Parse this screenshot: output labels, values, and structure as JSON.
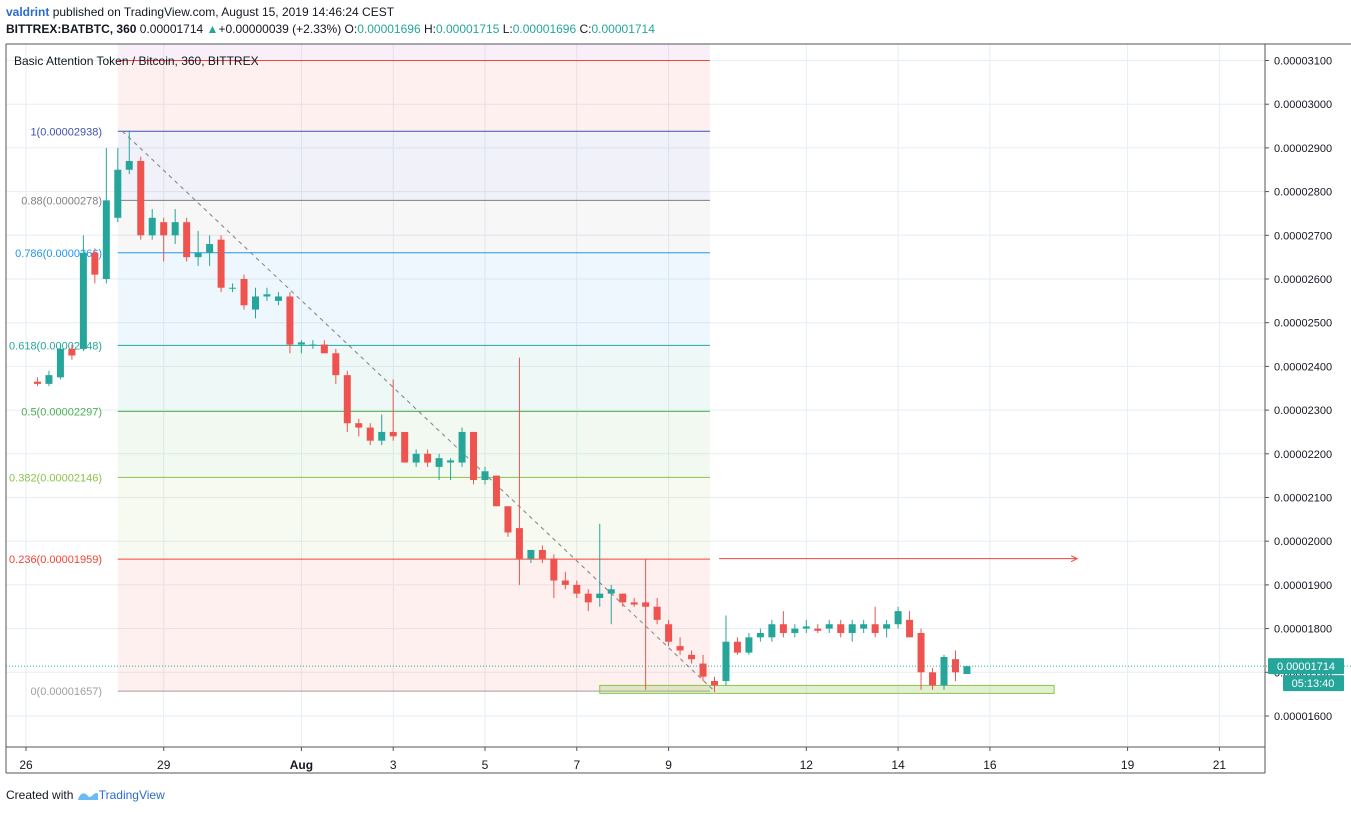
{
  "header": {
    "user": "valdrint",
    "published": "published on TradingView.com, August 15, 2019 14:46:24 CEST",
    "symbol": "BITTREX:BATBTC, 360",
    "last": "0.00001714",
    "change": "+0.00000039 (+2.33%)",
    "o_label": "O:",
    "o": "0.00001696",
    "h_label": "H:",
    "h": "0.00001715",
    "l_label": "L:",
    "l": "0.00001696",
    "c_label": "C:",
    "c": "0.00001714"
  },
  "legend": "Basic Attention Token / Bitcoin, 360, BITTREX",
  "footer": {
    "created_with": "Created with",
    "brand": "TradingView"
  },
  "colors": {
    "up": "#26a69a",
    "down": "#ef5350",
    "grid": "#e6eef5",
    "fib_1": "#3f51b5",
    "fib_088": "#808080",
    "fib_0786": "#2196f3",
    "fib_0618": "#26a69a",
    "fib_05": "#4caf50",
    "fib_0382": "#8bc34a",
    "fib_0236": "#f44336",
    "fib_0": "#9e9e9e",
    "fib_top": "#f44336",
    "price_tag": "#26a69a",
    "support_box": "#8bc34a"
  },
  "chart_data": {
    "type": "candlestick",
    "title": "Basic Attention Token / Bitcoin, 360, BITTREX",
    "ylim": [
      1.55e-05,
      3.14e-05
    ],
    "y_ticks": [
      "0.00003100",
      "0.00003000",
      "0.00002900",
      "0.00002800",
      "0.00002700",
      "0.00002600",
      "0.00002500",
      "0.00002400",
      "0.00002300",
      "0.00002200",
      "0.00002100",
      "0.00002000",
      "0.00001900",
      "0.00001800",
      "0.00001700",
      "0.00001600"
    ],
    "x_ticks": [
      {
        "label": "26",
        "day": 26
      },
      {
        "label": "29",
        "day": 29
      },
      {
        "label": "Aug",
        "day": 32
      },
      {
        "label": "3",
        "day": 34
      },
      {
        "label": "5",
        "day": 36
      },
      {
        "label": "7",
        "day": 38
      },
      {
        "label": "9",
        "day": 40
      },
      {
        "label": "12",
        "day": 43
      },
      {
        "label": "14",
        "day": 45
      },
      {
        "label": "16",
        "day": 47
      },
      {
        "label": "19",
        "day": 50
      },
      {
        "label": "21",
        "day": 52
      }
    ],
    "fib_levels": [
      {
        "ratio": "1.272",
        "price": 3.1e-05,
        "label": ""
      },
      {
        "ratio": "1",
        "price": 2.938e-05,
        "label": "1(0.00002938)"
      },
      {
        "ratio": "0.88",
        "price": 2.78e-05,
        "label": "0.88(0.0000278)"
      },
      {
        "ratio": "0.786",
        "price": 2.66e-05,
        "label": "0.786(0.0000266)"
      },
      {
        "ratio": "0.618",
        "price": 2.448e-05,
        "label": "0.618(0.00002448)"
      },
      {
        "ratio": "0.5",
        "price": 2.297e-05,
        "label": "0.5(0.00002297)"
      },
      {
        "ratio": "0.382",
        "price": 2.146e-05,
        "label": "0.382(0.00002146)"
      },
      {
        "ratio": "0.236",
        "price": 1.959e-05,
        "label": "0.236(0.00001959)"
      },
      {
        "ratio": "0",
        "price": 1.657e-05,
        "label": "0(0.00001657)"
      }
    ],
    "fib_range_days": [
      28.0,
      40.9
    ],
    "current_price": "0.00001714",
    "countdown": "05:13:40",
    "resistance_arrow": {
      "price": 1.96e-05,
      "from_day": 41.1,
      "to_day": 48.9
    },
    "support_box": {
      "low": 1.65e-05,
      "high": 1.67e-05,
      "from_day": 38.5,
      "to_day": 48.4
    },
    "candles": [
      {
        "d": 26.25,
        "o": 2.365,
        "h": 2.375,
        "l": 2.355,
        "c": 2.36
      },
      {
        "d": 26.5,
        "o": 2.36,
        "h": 2.39,
        "l": 2.355,
        "c": 2.38
      },
      {
        "d": 26.75,
        "o": 2.375,
        "h": 2.45,
        "l": 2.37,
        "c": 2.44
      },
      {
        "d": 27.0,
        "o": 2.44,
        "h": 2.45,
        "l": 2.415,
        "c": 2.425
      },
      {
        "d": 27.25,
        "o": 2.44,
        "h": 2.7,
        "l": 2.435,
        "c": 2.66
      },
      {
        "d": 27.5,
        "o": 2.66,
        "h": 2.67,
        "l": 2.59,
        "c": 2.61
      },
      {
        "d": 27.75,
        "o": 2.6,
        "h": 2.9,
        "l": 2.59,
        "c": 2.78
      },
      {
        "d": 28.0,
        "o": 2.74,
        "h": 2.9,
        "l": 2.73,
        "c": 2.85
      },
      {
        "d": 28.25,
        "o": 2.85,
        "h": 2.94,
        "l": 2.84,
        "c": 2.87
      },
      {
        "d": 28.5,
        "o": 2.87,
        "h": 2.88,
        "l": 2.69,
        "c": 2.7
      },
      {
        "d": 28.75,
        "o": 2.7,
        "h": 2.76,
        "l": 2.69,
        "c": 2.74
      },
      {
        "d": 29.0,
        "o": 2.73,
        "h": 2.74,
        "l": 2.64,
        "c": 2.7
      },
      {
        "d": 29.25,
        "o": 2.7,
        "h": 2.76,
        "l": 2.68,
        "c": 2.73
      },
      {
        "d": 29.5,
        "o": 2.73,
        "h": 2.74,
        "l": 2.64,
        "c": 2.65
      },
      {
        "d": 29.75,
        "o": 2.65,
        "h": 2.71,
        "l": 2.63,
        "c": 2.66
      },
      {
        "d": 30.0,
        "o": 2.66,
        "h": 2.7,
        "l": 2.63,
        "c": 2.68
      },
      {
        "d": 30.25,
        "o": 2.69,
        "h": 2.7,
        "l": 2.57,
        "c": 2.58
      },
      {
        "d": 30.5,
        "o": 2.58,
        "h": 2.59,
        "l": 2.57,
        "c": 2.58
      },
      {
        "d": 30.75,
        "o": 2.6,
        "h": 2.61,
        "l": 2.53,
        "c": 2.54
      },
      {
        "d": 31.0,
        "o": 2.53,
        "h": 2.58,
        "l": 2.51,
        "c": 2.56
      },
      {
        "d": 31.25,
        "o": 2.56,
        "h": 2.58,
        "l": 2.55,
        "c": 2.565
      },
      {
        "d": 31.5,
        "o": 2.55,
        "h": 2.57,
        "l": 2.54,
        "c": 2.56
      },
      {
        "d": 31.75,
        "o": 2.56,
        "h": 2.57,
        "l": 2.43,
        "c": 2.45
      },
      {
        "d": 32.0,
        "o": 2.45,
        "h": 2.46,
        "l": 2.43,
        "c": 2.455
      },
      {
        "d": 32.25,
        "o": 2.45,
        "h": 2.46,
        "l": 2.44,
        "c": 2.45
      },
      {
        "d": 32.5,
        "o": 2.45,
        "h": 2.46,
        "l": 2.43,
        "c": 2.43
      },
      {
        "d": 32.75,
        "o": 2.43,
        "h": 2.44,
        "l": 2.36,
        "c": 2.38
      },
      {
        "d": 33.0,
        "o": 2.38,
        "h": 2.39,
        "l": 2.25,
        "c": 2.27
      },
      {
        "d": 33.25,
        "o": 2.27,
        "h": 2.28,
        "l": 2.24,
        "c": 2.26
      },
      {
        "d": 33.5,
        "o": 2.26,
        "h": 2.27,
        "l": 2.22,
        "c": 2.23
      },
      {
        "d": 33.75,
        "o": 2.23,
        "h": 2.29,
        "l": 2.22,
        "c": 2.25
      },
      {
        "d": 34.0,
        "o": 2.25,
        "h": 2.37,
        "l": 2.23,
        "c": 2.24
      },
      {
        "d": 34.25,
        "o": 2.25,
        "h": 2.25,
        "l": 2.18,
        "c": 2.18
      },
      {
        "d": 34.5,
        "o": 2.18,
        "h": 2.21,
        "l": 2.17,
        "c": 2.2
      },
      {
        "d": 34.75,
        "o": 2.2,
        "h": 2.21,
        "l": 2.17,
        "c": 2.18
      },
      {
        "d": 35.0,
        "o": 2.17,
        "h": 2.2,
        "l": 2.14,
        "c": 2.19
      },
      {
        "d": 35.25,
        "o": 2.18,
        "h": 2.19,
        "l": 2.14,
        "c": 2.185
      },
      {
        "d": 35.5,
        "o": 2.18,
        "h": 2.26,
        "l": 2.17,
        "c": 2.25
      },
      {
        "d": 35.75,
        "o": 2.25,
        "h": 2.25,
        "l": 2.13,
        "c": 2.14
      },
      {
        "d": 36.0,
        "o": 2.14,
        "h": 2.17,
        "l": 2.13,
        "c": 2.16
      },
      {
        "d": 36.25,
        "o": 2.15,
        "h": 2.15,
        "l": 2.08,
        "c": 2.08
      },
      {
        "d": 36.5,
        "o": 2.08,
        "h": 2.08,
        "l": 2.01,
        "c": 2.02
      },
      {
        "d": 36.75,
        "o": 2.03,
        "h": 2.42,
        "l": 1.9,
        "c": 1.96
      },
      {
        "d": 37.0,
        "o": 1.96,
        "h": 1.98,
        "l": 1.95,
        "c": 1.98
      },
      {
        "d": 37.25,
        "o": 1.98,
        "h": 1.99,
        "l": 1.95,
        "c": 1.96
      },
      {
        "d": 37.5,
        "o": 1.96,
        "h": 1.97,
        "l": 1.87,
        "c": 1.91
      },
      {
        "d": 37.75,
        "o": 1.91,
        "h": 1.93,
        "l": 1.89,
        "c": 1.9
      },
      {
        "d": 38.0,
        "o": 1.9,
        "h": 1.91,
        "l": 1.87,
        "c": 1.88
      },
      {
        "d": 38.25,
        "o": 1.88,
        "h": 1.89,
        "l": 1.84,
        "c": 1.86
      },
      {
        "d": 38.5,
        "o": 1.87,
        "h": 2.04,
        "l": 1.85,
        "c": 1.88
      },
      {
        "d": 38.75,
        "o": 1.88,
        "h": 1.9,
        "l": 1.81,
        "c": 1.89
      },
      {
        "d": 39.0,
        "o": 1.88,
        "h": 1.88,
        "l": 1.85,
        "c": 1.86
      },
      {
        "d": 39.25,
        "o": 1.86,
        "h": 1.87,
        "l": 1.85,
        "c": 1.855
      },
      {
        "d": 39.5,
        "o": 1.86,
        "h": 1.96,
        "l": 1.66,
        "c": 1.85
      },
      {
        "d": 39.75,
        "o": 1.85,
        "h": 1.87,
        "l": 1.81,
        "c": 1.82
      },
      {
        "d": 40.0,
        "o": 1.81,
        "h": 1.82,
        "l": 1.76,
        "c": 1.77
      },
      {
        "d": 40.25,
        "o": 1.76,
        "h": 1.78,
        "l": 1.74,
        "c": 1.75
      },
      {
        "d": 40.5,
        "o": 1.74,
        "h": 1.75,
        "l": 1.72,
        "c": 1.73
      },
      {
        "d": 40.75,
        "o": 1.72,
        "h": 1.74,
        "l": 1.68,
        "c": 1.69
      },
      {
        "d": 41.0,
        "o": 1.68,
        "h": 1.69,
        "l": 1.655,
        "c": 1.67
      },
      {
        "d": 41.25,
        "o": 1.68,
        "h": 1.83,
        "l": 1.67,
        "c": 1.77
      },
      {
        "d": 41.5,
        "o": 1.77,
        "h": 1.78,
        "l": 1.74,
        "c": 1.745
      },
      {
        "d": 41.75,
        "o": 1.745,
        "h": 1.79,
        "l": 1.74,
        "c": 1.78
      },
      {
        "d": 42.0,
        "o": 1.78,
        "h": 1.8,
        "l": 1.77,
        "c": 1.79
      },
      {
        "d": 42.25,
        "o": 1.78,
        "h": 1.82,
        "l": 1.77,
        "c": 1.81
      },
      {
        "d": 42.5,
        "o": 1.81,
        "h": 1.84,
        "l": 1.78,
        "c": 1.79
      },
      {
        "d": 42.75,
        "o": 1.79,
        "h": 1.81,
        "l": 1.78,
        "c": 1.8
      },
      {
        "d": 43.0,
        "o": 1.8,
        "h": 1.82,
        "l": 1.79,
        "c": 1.805
      },
      {
        "d": 43.25,
        "o": 1.8,
        "h": 1.81,
        "l": 1.79,
        "c": 1.795
      },
      {
        "d": 43.5,
        "o": 1.8,
        "h": 1.82,
        "l": 1.79,
        "c": 1.81
      },
      {
        "d": 43.75,
        "o": 1.81,
        "h": 1.82,
        "l": 1.78,
        "c": 1.79
      },
      {
        "d": 44.0,
        "o": 1.79,
        "h": 1.82,
        "l": 1.77,
        "c": 1.81
      },
      {
        "d": 44.25,
        "o": 1.8,
        "h": 1.82,
        "l": 1.79,
        "c": 1.81
      },
      {
        "d": 44.5,
        "o": 1.81,
        "h": 1.85,
        "l": 1.78,
        "c": 1.79
      },
      {
        "d": 44.75,
        "o": 1.8,
        "h": 1.82,
        "l": 1.78,
        "c": 1.81
      },
      {
        "d": 45.0,
        "o": 1.81,
        "h": 1.85,
        "l": 1.8,
        "c": 1.84
      },
      {
        "d": 45.25,
        "o": 1.82,
        "h": 1.84,
        "l": 1.78,
        "c": 1.78
      },
      {
        "d": 45.5,
        "o": 1.79,
        "h": 1.8,
        "l": 1.66,
        "c": 1.7
      },
      {
        "d": 45.75,
        "o": 1.7,
        "h": 1.71,
        "l": 1.66,
        "c": 1.67
      },
      {
        "d": 46.0,
        "o": 1.67,
        "h": 1.74,
        "l": 1.66,
        "c": 1.735
      },
      {
        "d": 46.25,
        "o": 1.73,
        "h": 1.75,
        "l": 1.68,
        "c": 1.7
      },
      {
        "d": 46.5,
        "o": 1.696,
        "h": 1.715,
        "l": 1.696,
        "c": 1.714
      }
    ],
    "candle_scale": "1e-5"
  }
}
